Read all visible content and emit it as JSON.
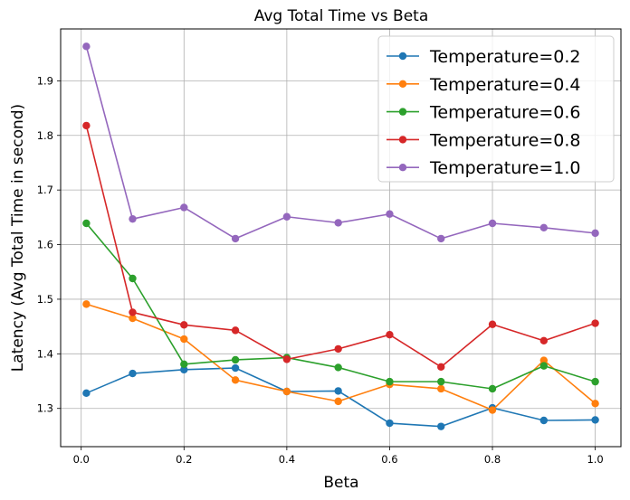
{
  "chart_data": {
    "type": "line",
    "title": "Avg Total Time vs Beta",
    "xlabel": "Beta",
    "ylabel": "Latency (Avg Total Time in second)",
    "xlim": [
      -0.04,
      1.05
    ],
    "ylim": [
      1.23,
      1.995
    ],
    "xticks": [
      0.0,
      0.2,
      0.4,
      0.6,
      0.8,
      1.0
    ],
    "xtick_labels": [
      "0.0",
      "0.2",
      "0.4",
      "0.6",
      "0.8",
      "1.0"
    ],
    "yticks": [
      1.3,
      1.4,
      1.5,
      1.6,
      1.7,
      1.8,
      1.9
    ],
    "ytick_labels": [
      "1.3",
      "1.4",
      "1.5",
      "1.6",
      "1.7",
      "1.8",
      "1.9"
    ],
    "grid": true,
    "legend_position": "top-right",
    "x": [
      0.01,
      0.1,
      0.2,
      0.3,
      0.4,
      0.5,
      0.6,
      0.7,
      0.8,
      0.9,
      1.0
    ],
    "series": [
      {
        "name": "Temperature=0.2",
        "color": "#1f77b4",
        "values": [
          1.328,
          1.364,
          1.371,
          1.374,
          1.331,
          1.332,
          1.273,
          1.267,
          1.301,
          1.278,
          1.279
        ]
      },
      {
        "name": "Temperature=0.4",
        "color": "#ff7f0e",
        "values": [
          1.491,
          1.465,
          1.427,
          1.352,
          1.331,
          1.313,
          1.344,
          1.336,
          1.297,
          1.388,
          1.309
        ]
      },
      {
        "name": "Temperature=0.6",
        "color": "#2ca02c",
        "values": [
          1.639,
          1.538,
          1.381,
          1.389,
          1.393,
          1.375,
          1.349,
          1.349,
          1.336,
          1.378,
          1.349
        ]
      },
      {
        "name": "Temperature=0.8",
        "color": "#d62728",
        "values": [
          1.818,
          1.476,
          1.453,
          1.443,
          1.39,
          1.409,
          1.435,
          1.376,
          1.454,
          1.424,
          1.456
        ]
      },
      {
        "name": "Temperature=1.0",
        "color": "#9467bd",
        "values": [
          1.963,
          1.647,
          1.668,
          1.611,
          1.651,
          1.64,
          1.656,
          1.611,
          1.639,
          1.631,
          1.621
        ]
      }
    ]
  }
}
